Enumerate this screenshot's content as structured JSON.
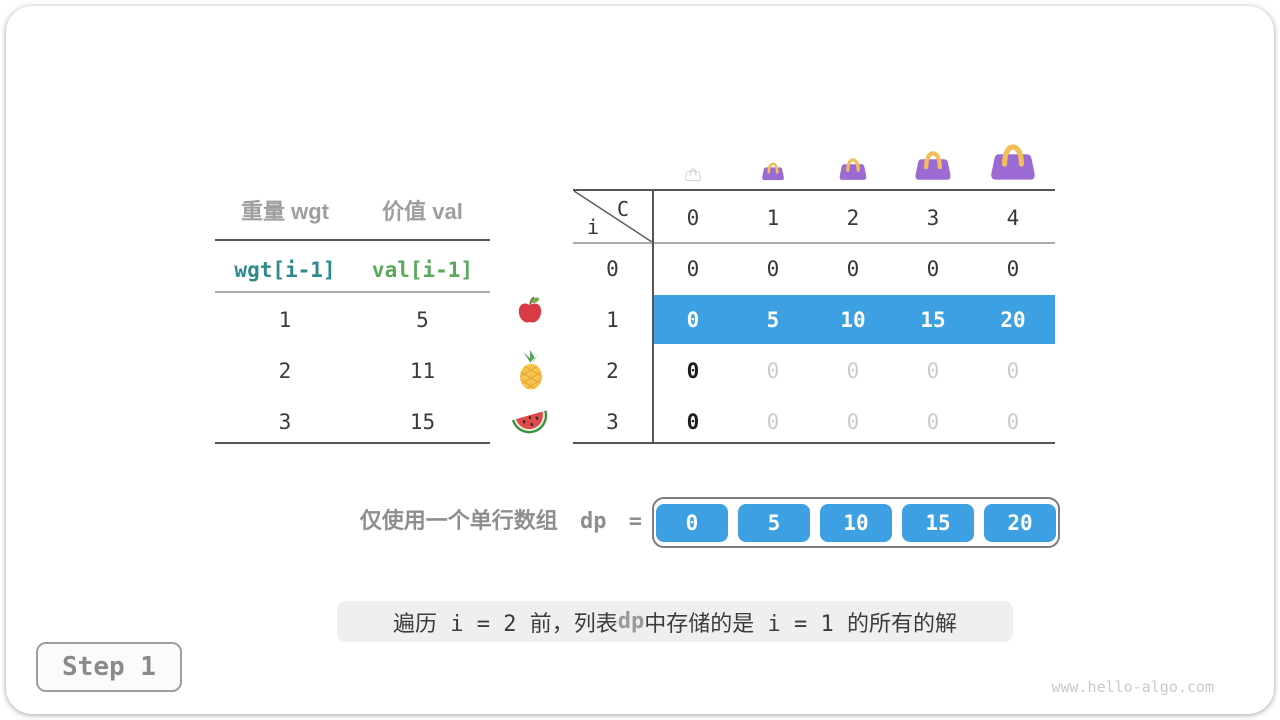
{
  "figure": {
    "step_label": "Step 1",
    "watermark": "www.hello-algo.com"
  },
  "items_table": {
    "headers": {
      "weight": "重量 wgt",
      "value": "价值 val"
    },
    "subheaders": {
      "weight": "wgt[i-1]",
      "value": "val[i-1]"
    },
    "rows": [
      {
        "weight": "1",
        "value": "5",
        "fruit": "apple"
      },
      {
        "weight": "2",
        "value": "11",
        "fruit": "pineapple"
      },
      {
        "weight": "3",
        "value": "15",
        "fruit": "watermelon"
      }
    ]
  },
  "dp_table": {
    "corner": {
      "col_var": "C",
      "row_var": "i"
    },
    "capacities": [
      "0",
      "1",
      "2",
      "3",
      "4"
    ],
    "bags": [
      {
        "column": "0",
        "style": "empty",
        "size": 18
      },
      {
        "column": "1",
        "style": "purple",
        "size": 26
      },
      {
        "column": "2",
        "style": "purple",
        "size": 32
      },
      {
        "column": "3",
        "style": "purple",
        "size": 42
      },
      {
        "column": "4",
        "style": "purple",
        "size": 52
      }
    ],
    "rows": [
      {
        "label": "0",
        "cells": [
          "0",
          "0",
          "0",
          "0",
          "0"
        ],
        "state": "computed"
      },
      {
        "label": "1",
        "cells": [
          "0",
          "5",
          "10",
          "15",
          "20"
        ],
        "state": "highlighted"
      },
      {
        "label": "2",
        "cells": [
          "0",
          "0",
          "0",
          "0",
          "0"
        ],
        "state": "pending"
      },
      {
        "label": "3",
        "cells": [
          "0",
          "0",
          "0",
          "0",
          "0"
        ],
        "state": "pending"
      }
    ]
  },
  "dp_array": {
    "label_text": "仅使用一个单行数组",
    "label_code": "dp",
    "label_equals": "=",
    "values": [
      "0",
      "5",
      "10",
      "15",
      "20"
    ]
  },
  "caption": {
    "part1": "遍历 i = 2 前，列表 ",
    "code": "dp",
    "part2": " 中存储的是 i = 1 的所有的解"
  },
  "colors": {
    "highlight_blue": "#3DA0E2",
    "bag_purple": "#9B6BD3",
    "bag_handle": "#F1BE5A",
    "teal": "#2E8B89",
    "green": "#5BA85C",
    "muted_gray": "#CBCBCB"
  }
}
